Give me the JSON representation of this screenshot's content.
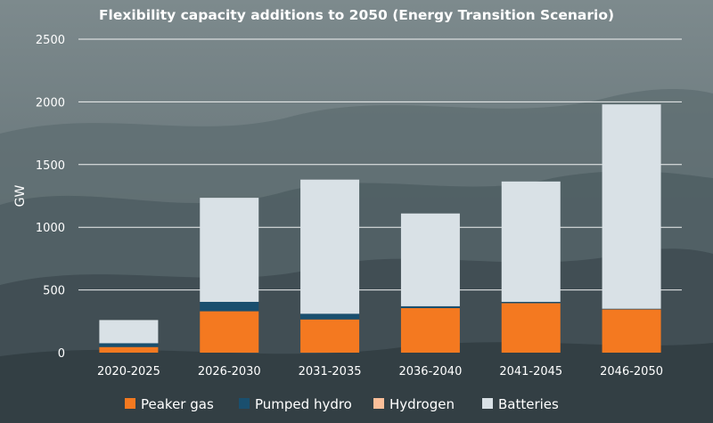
{
  "chart_data": {
    "type": "bar",
    "stacked": true,
    "title": "Flexibility capacity additions to 2050 (Energy Transition Scenario)",
    "xlabel": "",
    "ylabel": "GW",
    "ylim": [
      0,
      2500
    ],
    "yticks": [
      0,
      500,
      1000,
      1500,
      2000,
      2500
    ],
    "grid": true,
    "legend_position": "bottom",
    "categories": [
      "2020-2025",
      "2026-2030",
      "2031-2035",
      "2036-2040",
      "2041-2045",
      "2046-2050"
    ],
    "series": [
      {
        "name": "Peaker gas",
        "color": "#f47920",
        "values": [
          45,
          330,
          265,
          355,
          395,
          345
        ]
      },
      {
        "name": "Pumped hydro",
        "color": "#1a4f6e",
        "values": [
          30,
          75,
          45,
          15,
          10,
          5
        ]
      },
      {
        "name": "Hydrogen",
        "color": "#fbbf99",
        "values": [
          0,
          0,
          0,
          0,
          0,
          0
        ]
      },
      {
        "name": "Batteries",
        "color": "#d9e1e6",
        "values": [
          185,
          830,
          1070,
          740,
          960,
          1630
        ]
      }
    ]
  }
}
